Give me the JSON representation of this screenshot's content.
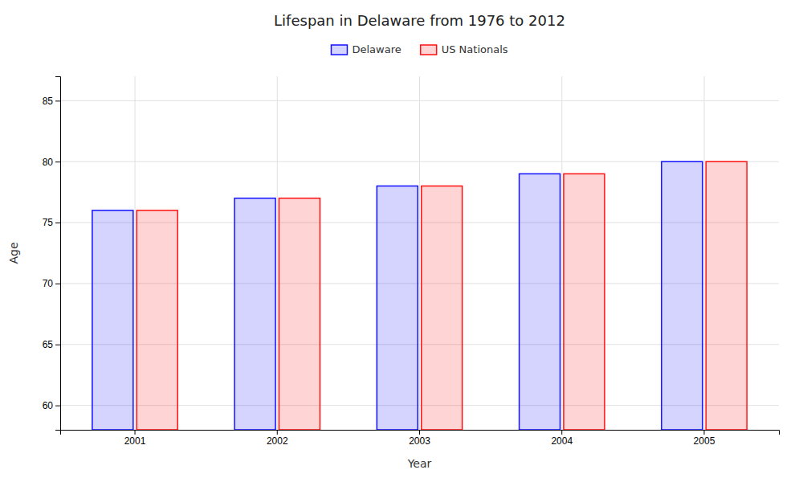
{
  "chart_data": {
    "type": "bar",
    "title": "Lifespan in Delaware from 1976 to 2012",
    "xlabel": "Year",
    "ylabel": "Age",
    "categories": [
      "2001",
      "2002",
      "2003",
      "2004",
      "2005"
    ],
    "series": [
      {
        "name": "Delaware",
        "color": "#1111ff",
        "values": [
          76,
          77,
          78,
          79,
          80
        ]
      },
      {
        "name": "US Nationals",
        "color": "#ff1111",
        "values": [
          76,
          77,
          78,
          79,
          80
        ]
      }
    ],
    "ylim": [
      58,
      87
    ],
    "yticks": [
      60,
      65,
      70,
      75,
      80,
      85
    ],
    "grid": true,
    "legend": "upper center"
  }
}
